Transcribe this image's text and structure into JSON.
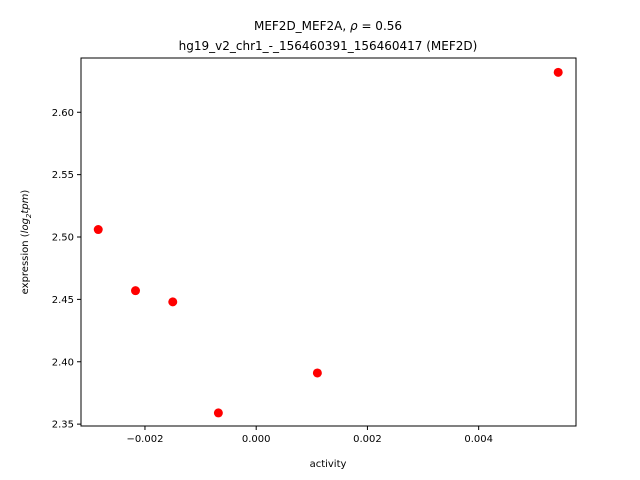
{
  "chart_data": {
    "type": "scatter",
    "title_line1_prefix": "MEF2D_MEF2A, ",
    "title_rho_symbol": "ρ",
    "title_rho_value": " = 0.56",
    "title_line2": "hg19_v2_chr1_-_156460391_156460417 (MEF2D)",
    "xlabel": "activity",
    "ylabel_prefix": "expression (",
    "ylabel_log": "log",
    "ylabel_sub": "2",
    "ylabel_tpm": "tpm",
    "ylabel_suffix": ")",
    "xlim": [
      -0.00315,
      0.00575
    ],
    "ylim": [
      2.3485,
      2.6435
    ],
    "xticks": [
      -0.002,
      0.0,
      0.002,
      0.004
    ],
    "xtick_labels": [
      "−0.002",
      "0.000",
      "0.002",
      "0.004"
    ],
    "yticks": [
      2.35,
      2.4,
      2.45,
      2.5,
      2.55,
      2.6
    ],
    "ytick_labels": [
      "2.35",
      "2.40",
      "2.45",
      "2.50",
      "2.55",
      "2.60"
    ],
    "grid": false,
    "marker_color": "#ff0000",
    "points": [
      {
        "x": -0.00284,
        "y": 2.506
      },
      {
        "x": -0.00217,
        "y": 2.457
      },
      {
        "x": -0.0015,
        "y": 2.448
      },
      {
        "x": -0.00068,
        "y": 2.359
      },
      {
        "x": 0.0011,
        "y": 2.391
      },
      {
        "x": 0.00543,
        "y": 2.632
      }
    ]
  }
}
